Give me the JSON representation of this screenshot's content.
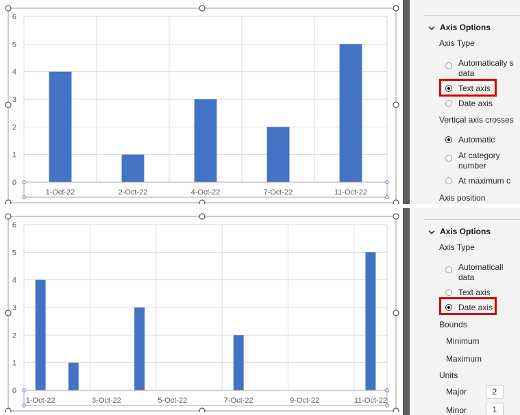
{
  "chart_data": [
    {
      "type": "bar",
      "axis_type": "text",
      "categories": [
        "1-Oct-22",
        "2-Oct-22",
        "4-Oct-22",
        "7-Oct-22",
        "11-Oct-22"
      ],
      "values": [
        4,
        1,
        3,
        2,
        5
      ],
      "ylim": [
        0,
        6
      ],
      "yticks": [
        0,
        1,
        2,
        3,
        4,
        5,
        6
      ],
      "grid": true,
      "bar_color": "#4472c4"
    },
    {
      "type": "bar",
      "axis_type": "date",
      "x": [
        "2022-10-01",
        "2022-10-02",
        "2022-10-04",
        "2022-10-07",
        "2022-10-11"
      ],
      "values": [
        4,
        1,
        3,
        2,
        5
      ],
      "xlim": [
        "2022-10-01",
        "2022-10-11"
      ],
      "date_major_unit_days": 2,
      "xtick_labels": [
        "1-Oct-22",
        "3-Oct-22",
        "5-Oct-22",
        "7-Oct-22",
        "9-Oct-22",
        "11-Oct-22"
      ],
      "ylim": [
        0,
        6
      ],
      "yticks": [
        0,
        1,
        2,
        3,
        4,
        5,
        6
      ],
      "grid": true,
      "bar_color": "#4472c4"
    }
  ],
  "panel_top": {
    "section_title": "Axis Options",
    "axis_type_label": "Axis Type",
    "options": [
      "Automatically select based on data",
      "Text axis",
      "Date axis"
    ],
    "auto_line1": "Automatically s",
    "auto_line2": "data",
    "text_axis": "Text axis",
    "date_axis": "Date axis",
    "selected": "text",
    "vertical_crosses_label": "Vertical axis crosses",
    "cross_automatic": "Automatic",
    "cross_category_line1": "At category",
    "cross_category_line2": "number",
    "cross_max": "At maximum c",
    "axis_position_label": "Axis position"
  },
  "panel_bottom": {
    "section_title": "Axis Options",
    "axis_type_label": "Axis Type",
    "auto_line1": "Automaticall",
    "auto_line2": "data",
    "text_axis": "Text axis",
    "date_axis": "Date axis",
    "selected": "date",
    "bounds_label": "Bounds",
    "minimum_label": "Minimum",
    "maximum_label": "Maximum",
    "units_label": "Units",
    "major_label": "Major",
    "major_value": "2",
    "minor_label": "Minor",
    "minor_value": "1"
  }
}
